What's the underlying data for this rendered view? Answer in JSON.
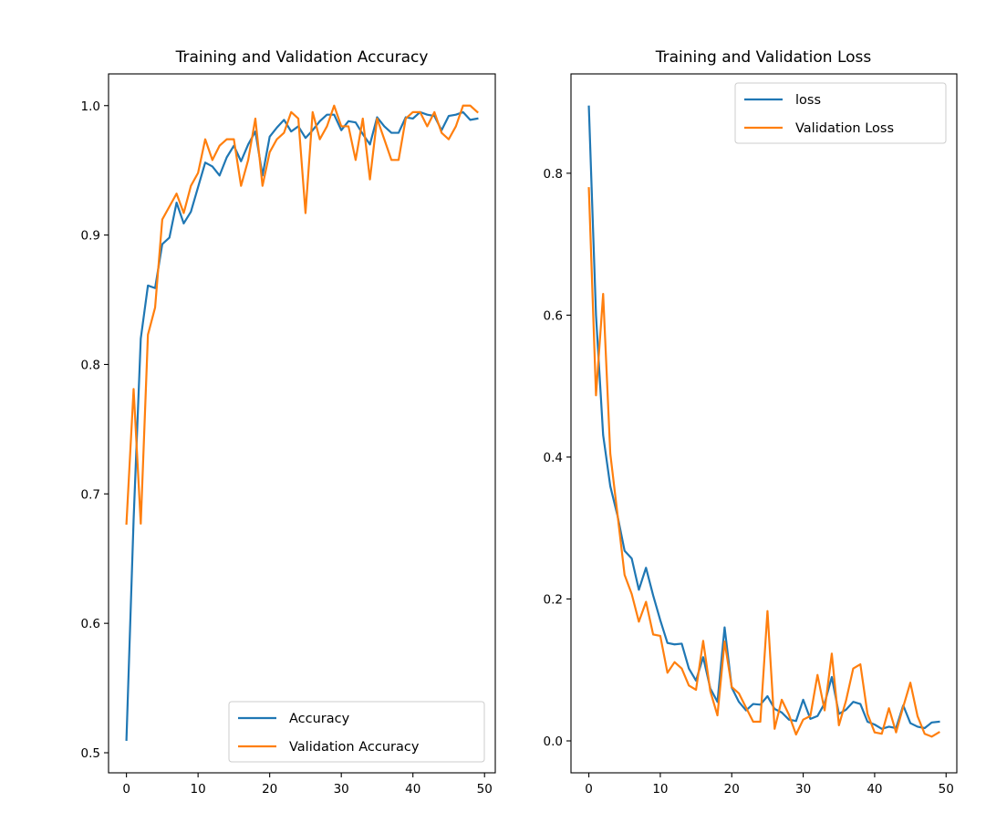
{
  "chart_data": [
    {
      "type": "line",
      "title": "Training and Validation Accuracy",
      "xlim": [
        -2.5,
        51.5
      ],
      "ylim": [
        0.4845,
        1.0245
      ],
      "xticks": [
        0,
        10,
        20,
        30,
        40,
        50
      ],
      "yticks": [
        0.5,
        0.6,
        0.7,
        0.8,
        0.9,
        1.0
      ],
      "xtick_labels": [
        "0",
        "10",
        "20",
        "30",
        "40",
        "50"
      ],
      "ytick_labels": [
        "0.5",
        "0.6",
        "0.7",
        "0.8",
        "0.9",
        "1.0"
      ],
      "legend_position": "bottom-right",
      "series": [
        {
          "name": "Accuracy",
          "color": "#1f77b4",
          "values": [
            0.51,
            0.68,
            0.82,
            0.861,
            0.859,
            0.893,
            0.898,
            0.925,
            0.909,
            0.918,
            0.937,
            0.956,
            0.953,
            0.946,
            0.96,
            0.969,
            0.957,
            0.97,
            0.98,
            0.946,
            0.976,
            0.983,
            0.989,
            0.98,
            0.984,
            0.975,
            0.981,
            0.988,
            0.993,
            0.993,
            0.981,
            0.988,
            0.987,
            0.978,
            0.97,
            0.991,
            0.984,
            0.979,
            0.979,
            0.991,
            0.99,
            0.995,
            0.993,
            0.992,
            0.981,
            0.992,
            0.993,
            0.995,
            0.989,
            0.99
          ]
        },
        {
          "name": "Validation Accuracy",
          "color": "#ff7f0e",
          "values": [
            0.677,
            0.781,
            0.677,
            0.823,
            0.844,
            0.912,
            0.922,
            0.932,
            0.917,
            0.938,
            0.948,
            0.974,
            0.958,
            0.969,
            0.974,
            0.974,
            0.938,
            0.958,
            0.99,
            0.938,
            0.964,
            0.974,
            0.979,
            0.995,
            0.99,
            0.917,
            0.995,
            0.974,
            0.984,
            1.0,
            0.984,
            0.984,
            0.958,
            0.99,
            0.943,
            0.99,
            0.974,
            0.958,
            0.958,
            0.99,
            0.995,
            0.995,
            0.984,
            0.995,
            0.979,
            0.974,
            0.984,
            1.0,
            1.0,
            0.995
          ]
        }
      ]
    },
    {
      "type": "line",
      "title": "Training and Validation Loss",
      "xlim": [
        -2.5,
        51.5
      ],
      "ylim": [
        -0.045,
        0.94
      ],
      "xticks": [
        0,
        10,
        20,
        30,
        40,
        50
      ],
      "yticks": [
        0.0,
        0.2,
        0.4,
        0.6,
        0.8
      ],
      "xtick_labels": [
        "0",
        "10",
        "20",
        "30",
        "40",
        "50"
      ],
      "ytick_labels": [
        "0.0",
        "0.2",
        "0.4",
        "0.6",
        "0.8"
      ],
      "legend_position": "top-right",
      "series": [
        {
          "name": "loss",
          "color": "#1f77b4",
          "values": [
            0.894,
            0.6,
            0.431,
            0.359,
            0.318,
            0.268,
            0.257,
            0.213,
            0.244,
            0.205,
            0.17,
            0.138,
            0.136,
            0.137,
            0.102,
            0.085,
            0.118,
            0.074,
            0.055,
            0.16,
            0.075,
            0.055,
            0.043,
            0.052,
            0.051,
            0.063,
            0.045,
            0.04,
            0.03,
            0.028,
            0.058,
            0.031,
            0.035,
            0.053,
            0.09,
            0.038,
            0.044,
            0.055,
            0.052,
            0.027,
            0.023,
            0.017,
            0.02,
            0.018,
            0.05,
            0.025,
            0.02,
            0.018,
            0.026,
            0.027
          ]
        },
        {
          "name": "Validation Loss",
          "color": "#ff7f0e",
          "values": [
            0.779,
            0.487,
            0.63,
            0.405,
            0.32,
            0.234,
            0.207,
            0.168,
            0.196,
            0.15,
            0.148,
            0.096,
            0.111,
            0.102,
            0.078,
            0.072,
            0.141,
            0.07,
            0.036,
            0.14,
            0.076,
            0.067,
            0.047,
            0.027,
            0.027,
            0.183,
            0.017,
            0.058,
            0.037,
            0.009,
            0.03,
            0.035,
            0.093,
            0.043,
            0.123,
            0.022,
            0.057,
            0.102,
            0.108,
            0.038,
            0.012,
            0.01,
            0.046,
            0.012,
            0.048,
            0.082,
            0.035,
            0.01,
            0.006,
            0.012
          ]
        }
      ]
    }
  ]
}
